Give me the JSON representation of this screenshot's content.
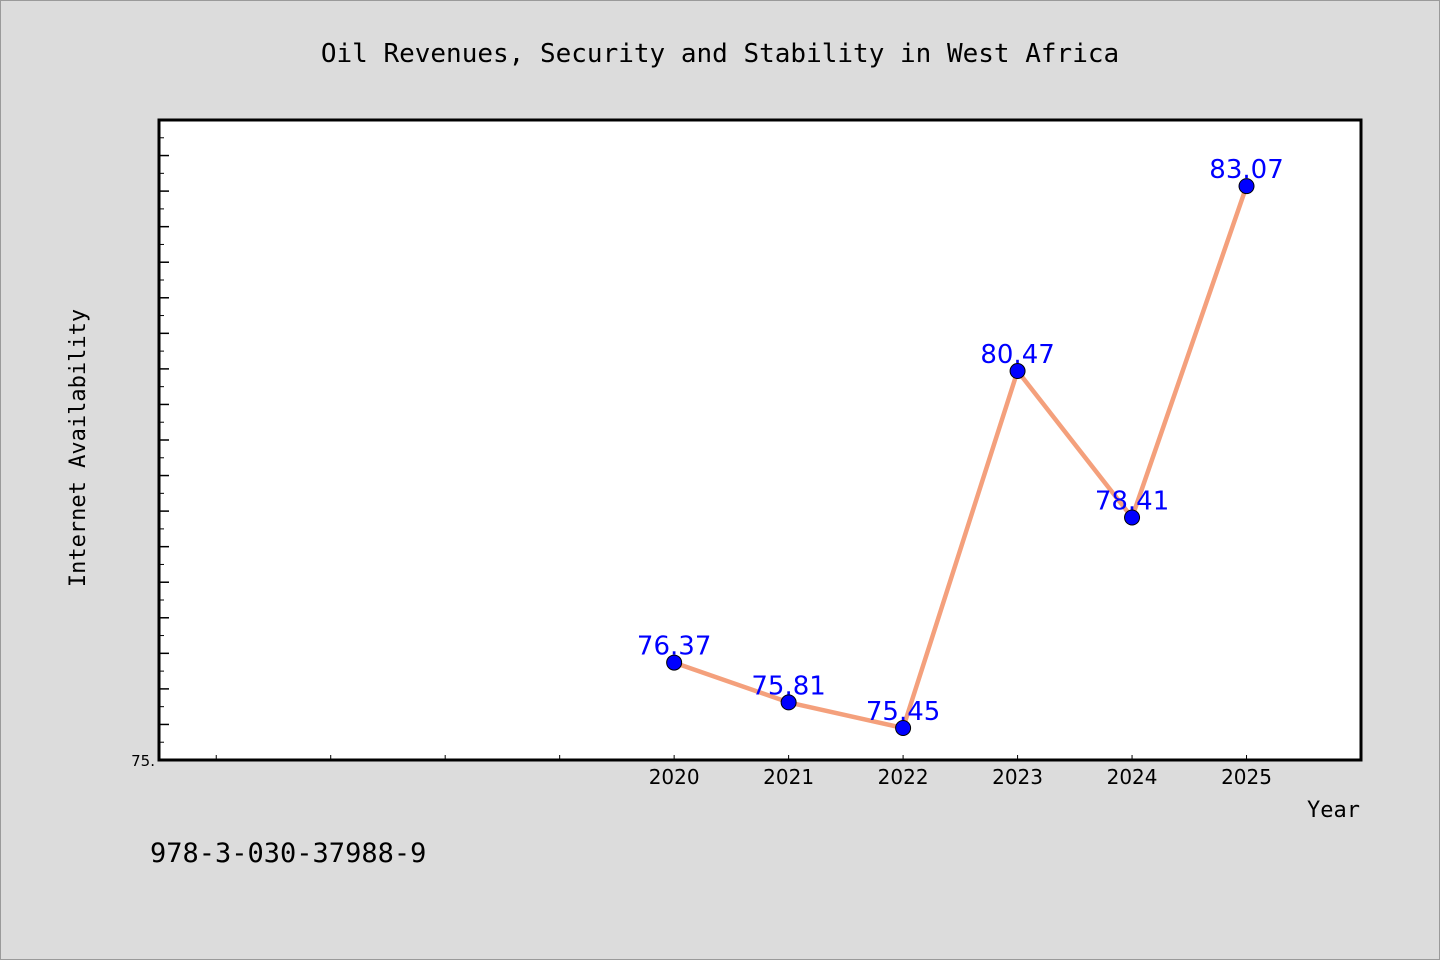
{
  "chart_data": {
    "type": "line",
    "title": "Oil Revenues, Security and Stability in West Africa",
    "xlabel": "Year",
    "ylabel": "Internet Availability",
    "x": [
      "2020",
      "2021",
      "2022",
      "2023",
      "2024",
      "2025"
    ],
    "series": [
      {
        "values": [
          76.37,
          75.81,
          75.45,
          80.47,
          78.41,
          83.07
        ],
        "labels": [
          "76.37",
          "75.81",
          "75.45",
          "80.47",
          "78.41",
          "83.07"
        ]
      }
    ],
    "xlim": [
      2015.5,
      2026.0
    ],
    "ylim": [
      75.0,
      84.0
    ],
    "y_tick_labels": [
      {
        "value": 75.0,
        "label": "75."
      }
    ],
    "grid": false,
    "line_color": "#f4a07c",
    "marker_color": "#0000ff",
    "label_color": "#0000ff"
  },
  "footer_text": "978-3-030-37988-9"
}
